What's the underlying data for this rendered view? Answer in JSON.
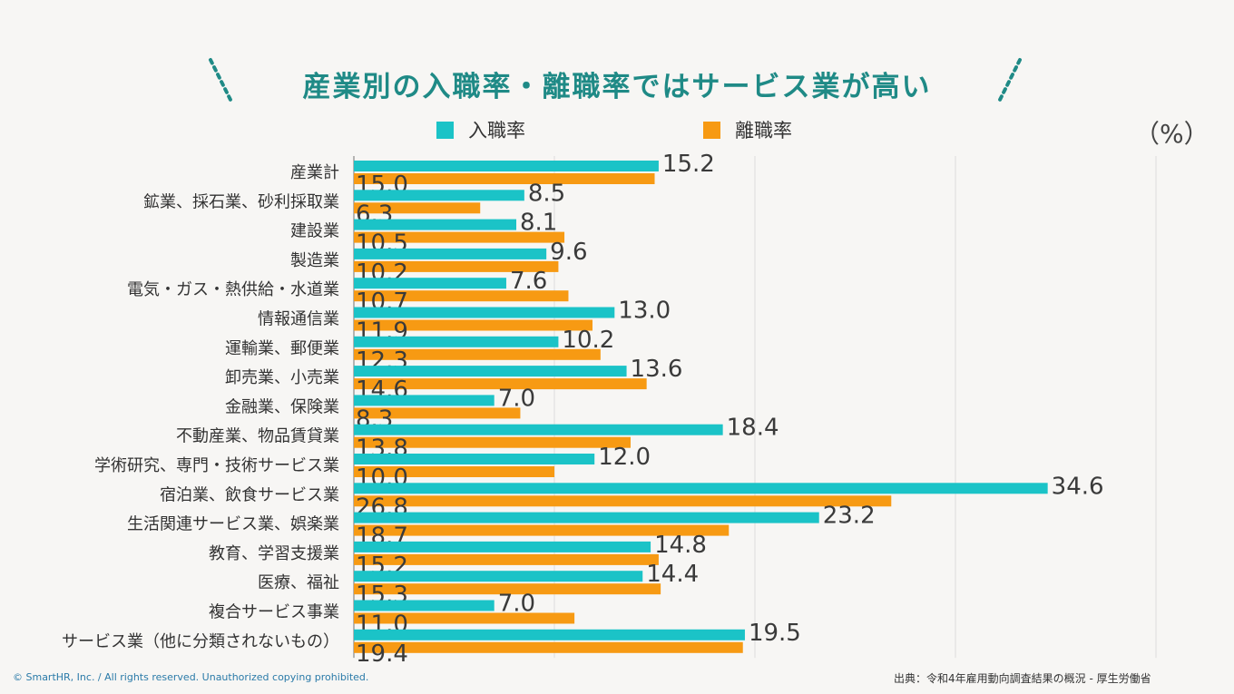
{
  "title": "産業別の入職率・離職率ではサービス業が高い",
  "unit": "（%）",
  "footer": {
    "copyright": "© SmartHR, Inc. / All rights reserved. Unauthorized copying prohibited.",
    "source": "出典：令和4年雇用動向調査結果の概況 - 厚生労働省"
  },
  "colors": {
    "entry": "#1bc3c7",
    "exit": "#f79a13",
    "title": "#1f8a86"
  },
  "chart_data": {
    "type": "bar",
    "orientation": "horizontal",
    "title": "産業別の入職率・離職率ではサービス業が高い",
    "xlabel": "",
    "ylabel": "",
    "unit": "%",
    "xlim": [
      0,
      40
    ],
    "grid": true,
    "legend_position": "top",
    "categories": [
      "産業計",
      "鉱業、採石業、砂利採取業",
      "建設業",
      "製造業",
      "電気・ガス・熱供給・水道業",
      "情報通信業",
      "運輸業、郵便業",
      "卸売業、小売業",
      "金融業、保険業",
      "不動産業、物品賃貸業",
      "学術研究、専門・技術サービス業",
      "宿泊業、飲食サービス業",
      "生活関連サービス業、娯楽業",
      "教育、学習支援業",
      "医療、福祉",
      "複合サービス事業",
      "サービス業（他に分類されないもの）"
    ],
    "series": [
      {
        "name": "入職率",
        "values": [
          15.2,
          8.5,
          8.1,
          9.6,
          7.6,
          13.0,
          10.2,
          13.6,
          7.0,
          18.4,
          12.0,
          34.6,
          23.2,
          14.8,
          14.4,
          7.0,
          19.5
        ]
      },
      {
        "name": "離職率",
        "values": [
          15.0,
          6.3,
          10.5,
          10.2,
          10.7,
          11.9,
          12.3,
          14.6,
          8.3,
          13.8,
          10.0,
          26.8,
          18.7,
          15.2,
          15.3,
          11.0,
          19.4
        ]
      }
    ]
  }
}
